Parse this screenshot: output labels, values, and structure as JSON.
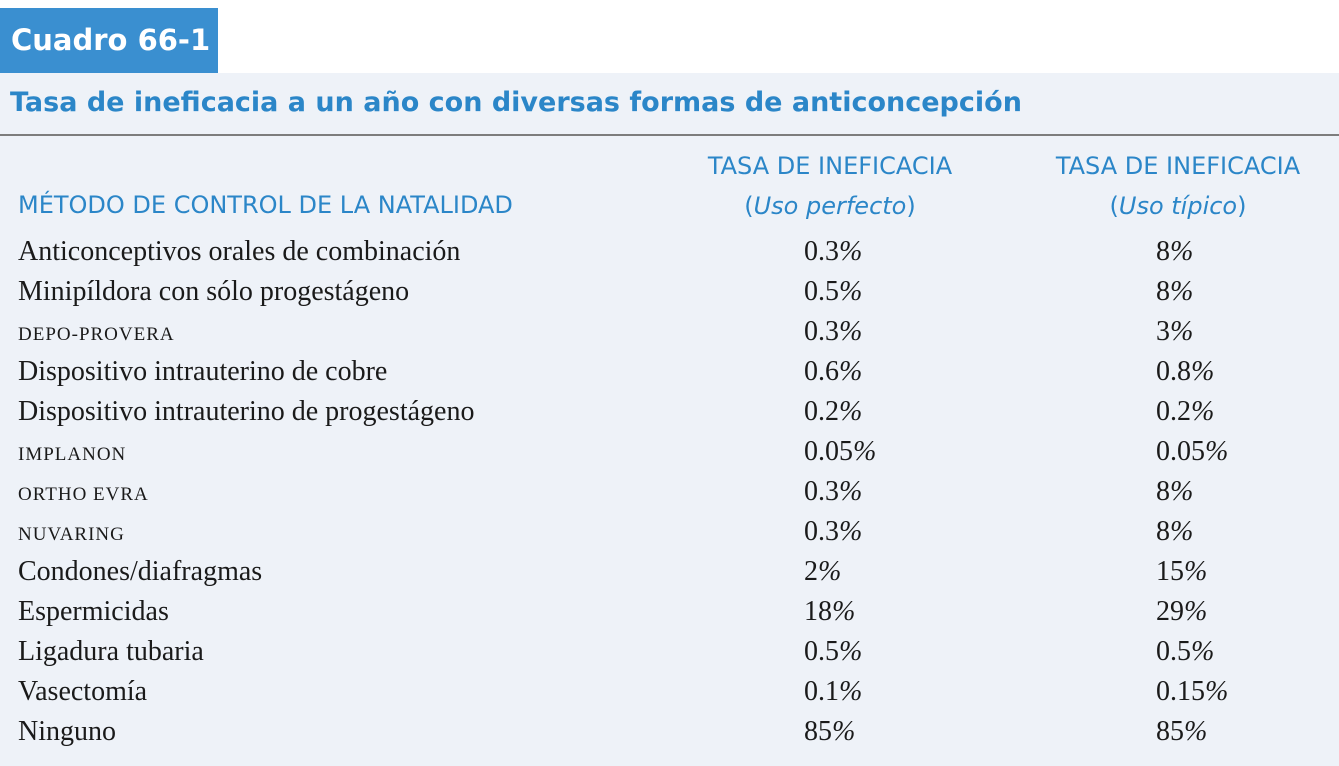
{
  "box_tag": "Cuadro 66-1",
  "title": "Tasa de ineficacia a un año con diversas formas de anticoncepción",
  "columns": {
    "method": "MÉTODO DE CONTROL DE LA NATALIDAD",
    "perfect_head": "TASA DE INEFICACIA",
    "perfect_open": "(",
    "perfect_sub": "Uso perfecto",
    "perfect_close": ")",
    "typical_head": "TASA DE INEFICACIA",
    "typical_open": "(",
    "typical_sub": "Uso típico",
    "typical_close": ")"
  },
  "rows": [
    {
      "method": "Anticonceptivos orales de combinación",
      "perfect": "0.3",
      "typical": "8"
    },
    {
      "method": "Minipíldora con sólo progestágeno",
      "perfect": "0.5",
      "typical": "8"
    },
    {
      "method": "DEPO-PROVERA",
      "perfect": "0.3",
      "typical": "3"
    },
    {
      "method": "Dispositivo intrauterino de cobre",
      "perfect": "0.6",
      "typical": "0.8"
    },
    {
      "method": "Dispositivo intrauterino de progestágeno",
      "perfect": "0.2",
      "typical": "0.2"
    },
    {
      "method": "IMPLANON",
      "perfect": "0.05",
      "typical": "0.05"
    },
    {
      "method": "ORTHO EVRA",
      "perfect": "0.3",
      "typical": "8"
    },
    {
      "method": "NUVARING",
      "perfect": "0.3",
      "typical": "8"
    },
    {
      "method": "Condones/diafragmas",
      "perfect": "2",
      "typical": "15"
    },
    {
      "method": "Espermicidas",
      "perfect": "18",
      "typical": "29"
    },
    {
      "method": "Ligadura tubaria",
      "perfect": "0.5",
      "typical": "0.5"
    },
    {
      "method": "Vasectomía",
      "perfect": "0.1",
      "typical": "0.15"
    },
    {
      "method": "Ninguno",
      "perfect": "85",
      "typical": "85"
    }
  ],
  "percent_sign": "%",
  "colors": {
    "tag_bg": "#3a8fd0",
    "accent": "#2b86c8",
    "band_bg": "#eef2f8",
    "rule": "#7d7d7d"
  }
}
